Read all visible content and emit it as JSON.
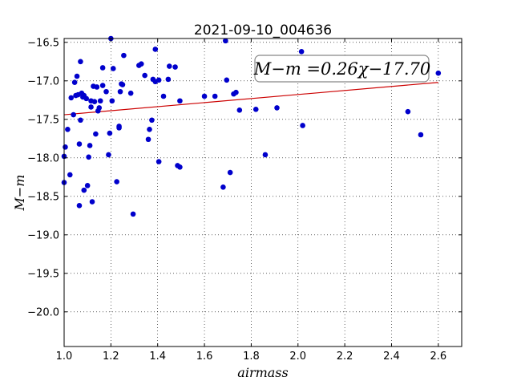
{
  "chart_data": {
    "type": "scatter",
    "title": "2021-09-10_004636",
    "xlabel": "airmass",
    "ylabel": "M−m",
    "xlim": [
      1.0,
      2.7
    ],
    "ylim": [
      -20.45,
      -16.45
    ],
    "x_ticks": [
      "1.0",
      "1.2",
      "1.4",
      "1.6",
      "1.8",
      "2.0",
      "2.2",
      "2.4",
      "2.6"
    ],
    "y_ticks": [
      "−16.5",
      "−17.0",
      "−17.5",
      "−18.0",
      "−18.5",
      "−19.0",
      "−19.5",
      "−20.0"
    ],
    "grid": true,
    "annotation": "M−m =0.26χ−17.70",
    "annotation_position": "top-right",
    "marker_color": "#0000cc",
    "fit_color": "#cc0000",
    "fit_line": {
      "x": [
        1.0,
        2.6
      ],
      "y": [
        -17.44,
        -17.02
      ]
    },
    "points": [
      {
        "x": 1.0,
        "y": -17.98
      },
      {
        "x": 1.0,
        "y": -18.32
      },
      {
        "x": 1.005,
        "y": -17.86
      },
      {
        "x": 1.015,
        "y": -17.63
      },
      {
        "x": 1.025,
        "y": -18.22
      },
      {
        "x": 1.03,
        "y": -17.22
      },
      {
        "x": 1.04,
        "y": -17.44
      },
      {
        "x": 1.045,
        "y": -17.02
      },
      {
        "x": 1.05,
        "y": -17.19
      },
      {
        "x": 1.055,
        "y": -16.94
      },
      {
        "x": 1.06,
        "y": -17.18
      },
      {
        "x": 1.065,
        "y": -18.62
      },
      {
        "x": 1.065,
        "y": -17.82
      },
      {
        "x": 1.07,
        "y": -17.51
      },
      {
        "x": 1.07,
        "y": -16.75
      },
      {
        "x": 1.075,
        "y": -17.16
      },
      {
        "x": 1.08,
        "y": -17.21
      },
      {
        "x": 1.085,
        "y": -18.42
      },
      {
        "x": 1.085,
        "y": -17.19
      },
      {
        "x": 1.095,
        "y": -17.23
      },
      {
        "x": 1.1,
        "y": -18.36
      },
      {
        "x": 1.105,
        "y": -17.99
      },
      {
        "x": 1.11,
        "y": -17.84
      },
      {
        "x": 1.115,
        "y": -17.34
      },
      {
        "x": 1.115,
        "y": -17.26
      },
      {
        "x": 1.12,
        "y": -18.57
      },
      {
        "x": 1.125,
        "y": -17.07
      },
      {
        "x": 1.13,
        "y": -17.27
      },
      {
        "x": 1.135,
        "y": -17.69
      },
      {
        "x": 1.14,
        "y": -17.08
      },
      {
        "x": 1.145,
        "y": -17.39
      },
      {
        "x": 1.15,
        "y": -17.35
      },
      {
        "x": 1.155,
        "y": -17.26
      },
      {
        "x": 1.165,
        "y": -17.06
      },
      {
        "x": 1.165,
        "y": -16.83
      },
      {
        "x": 1.18,
        "y": -17.14
      },
      {
        "x": 1.19,
        "y": -17.96
      },
      {
        "x": 1.195,
        "y": -17.68
      },
      {
        "x": 1.2,
        "y": -16.45
      },
      {
        "x": 1.205,
        "y": -17.26
      },
      {
        "x": 1.21,
        "y": -16.84
      },
      {
        "x": 1.225,
        "y": -18.31
      },
      {
        "x": 1.235,
        "y": -17.61
      },
      {
        "x": 1.235,
        "y": -17.59
      },
      {
        "x": 1.24,
        "y": -17.14
      },
      {
        "x": 1.245,
        "y": -17.04
      },
      {
        "x": 1.25,
        "y": -17.05
      },
      {
        "x": 1.255,
        "y": -16.67
      },
      {
        "x": 1.285,
        "y": -17.16
      },
      {
        "x": 1.295,
        "y": -18.73
      },
      {
        "x": 1.32,
        "y": -16.8
      },
      {
        "x": 1.33,
        "y": -16.78
      },
      {
        "x": 1.345,
        "y": -16.93
      },
      {
        "x": 1.36,
        "y": -17.76
      },
      {
        "x": 1.365,
        "y": -17.63
      },
      {
        "x": 1.375,
        "y": -17.51
      },
      {
        "x": 1.38,
        "y": -16.98
      },
      {
        "x": 1.39,
        "y": -16.59
      },
      {
        "x": 1.39,
        "y": -17.01
      },
      {
        "x": 1.405,
        "y": -18.05
      },
      {
        "x": 1.405,
        "y": -16.99
      },
      {
        "x": 1.425,
        "y": -17.2
      },
      {
        "x": 1.445,
        "y": -16.98
      },
      {
        "x": 1.45,
        "y": -16.81
      },
      {
        "x": 1.475,
        "y": -16.82
      },
      {
        "x": 1.485,
        "y": -18.1
      },
      {
        "x": 1.495,
        "y": -17.26
      },
      {
        "x": 1.495,
        "y": -18.12
      },
      {
        "x": 1.6,
        "y": -17.2
      },
      {
        "x": 1.645,
        "y": -17.2
      },
      {
        "x": 1.68,
        "y": -18.38
      },
      {
        "x": 1.69,
        "y": -16.48
      },
      {
        "x": 1.695,
        "y": -16.99
      },
      {
        "x": 1.71,
        "y": -18.19
      },
      {
        "x": 1.725,
        "y": -17.17
      },
      {
        "x": 1.735,
        "y": -17.15
      },
      {
        "x": 1.75,
        "y": -17.38
      },
      {
        "x": 1.82,
        "y": -17.37
      },
      {
        "x": 1.86,
        "y": -17.96
      },
      {
        "x": 1.91,
        "y": -17.35
      },
      {
        "x": 2.015,
        "y": -16.62
      },
      {
        "x": 2.02,
        "y": -17.58
      },
      {
        "x": 2.47,
        "y": -17.4
      },
      {
        "x": 2.525,
        "y": -17.7
      },
      {
        "x": 2.6,
        "y": -16.9
      }
    ]
  }
}
